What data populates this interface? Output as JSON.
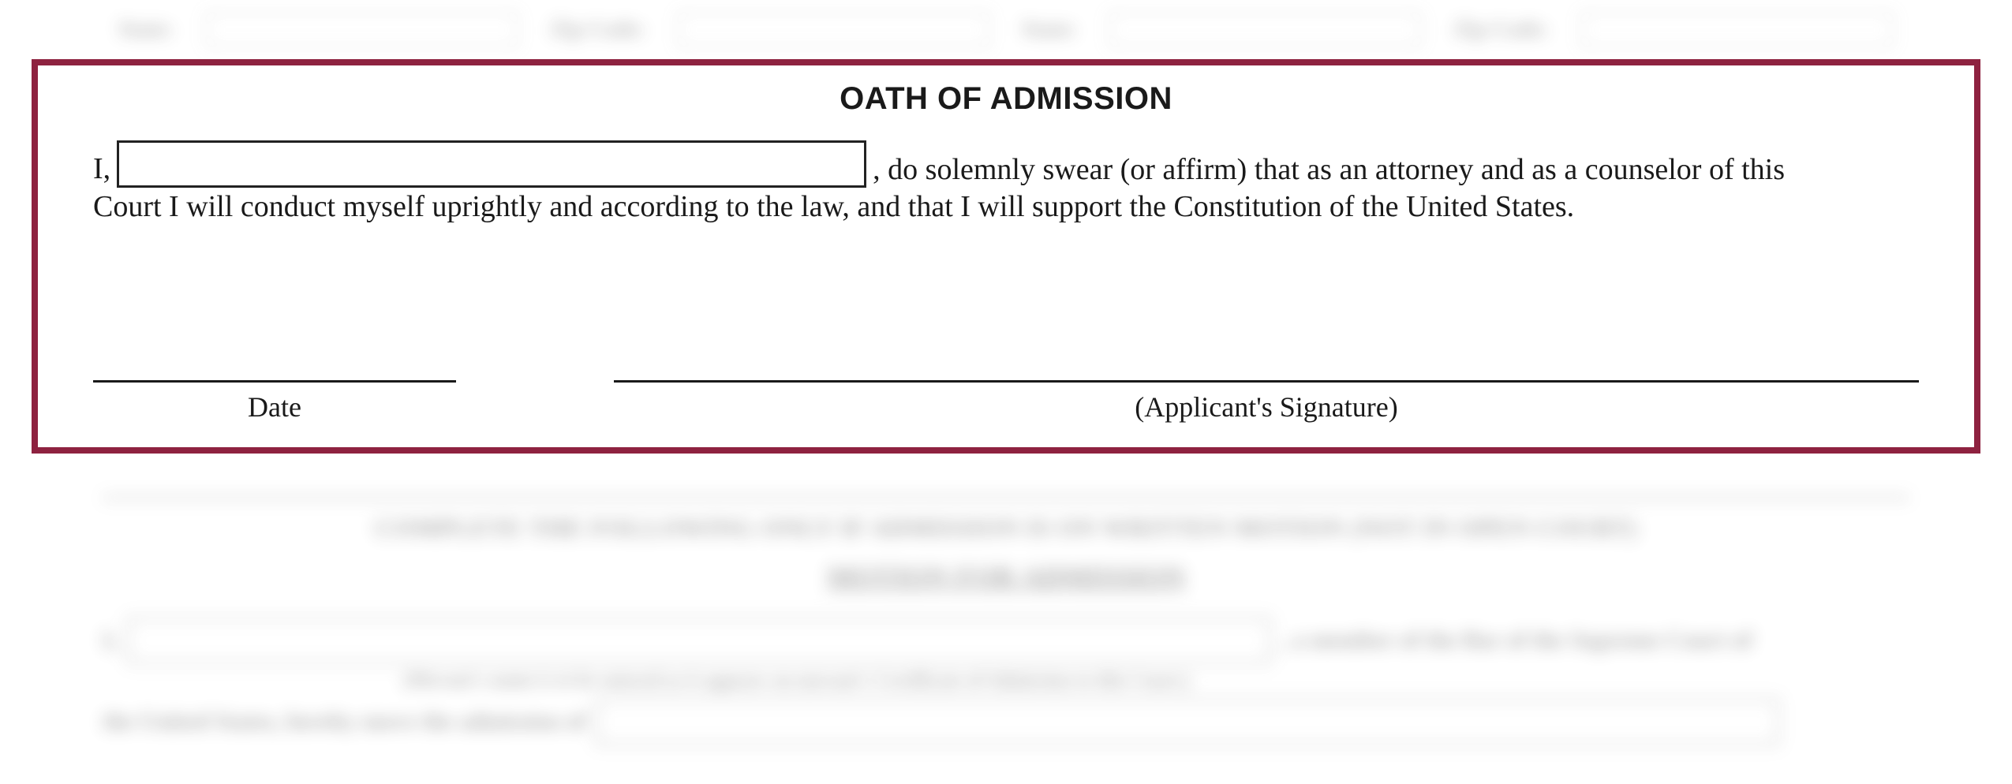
{
  "top_fields": {
    "left_label": "State:",
    "mid_label": "Zip Code:",
    "right_state": "State:",
    "right_zip": "Zip Code:"
  },
  "oath": {
    "title": "OATH OF ADMISSION",
    "prefix": "I,",
    "text_after_name": ", do solemnly swear (or affirm) that as an attorney and as a counselor of this",
    "text_line2": "Court I will conduct myself uprightly and according to the law, and that I will support the Constitution of the United States.",
    "date_label": "Date",
    "signature_label": "(Applicant's Signature)"
  },
  "bottom": {
    "instruction": "COMPLETE THE FOLLOWING ONLY IF ADMISSION IS ON WRITTEN MOTION (NOT IN OPEN COURT)",
    "heading": "MOTION FOR ADMISSION",
    "row1_prefix": "I,",
    "row1_suffix": ", a member of the Bar of the Supreme Court of",
    "subtext": "(Movant's name is to be entered as it appears on movant's Certificate of Admission to this Court.)",
    "row2_prefix": "the United States, hereby move the admission of"
  },
  "colors": {
    "frame_border": "#8e2240",
    "text": "#1a1a1a",
    "background": "#ffffff"
  }
}
